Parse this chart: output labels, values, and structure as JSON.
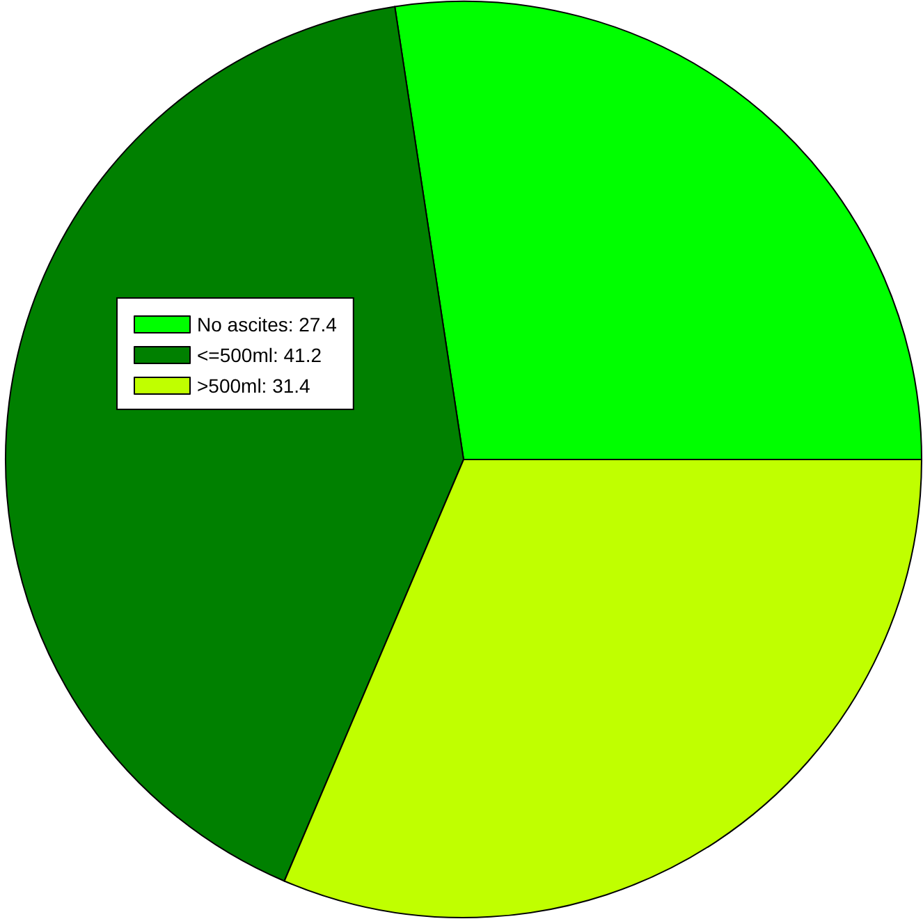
{
  "chart_data": {
    "type": "pie",
    "categories": [
      "No ascites: 27.4",
      "<=500ml: 41.2",
      ">500ml: 31.4"
    ],
    "values": [
      27.4,
      41.2,
      31.4
    ],
    "colors": [
      "#00ff00",
      "#008000",
      "#c0ff00"
    ],
    "legend": "left"
  }
}
